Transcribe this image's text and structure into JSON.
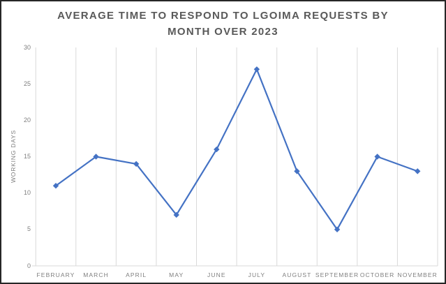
{
  "window": {
    "background": "#ffffff",
    "border_color": "#262626"
  },
  "header": {
    "title_lines": [
      "AVERAGE TIME TO RESPOND TO LGOIMA REQUESTS BY",
      "MONTH OVER 2023"
    ],
    "title_color": "#595959"
  },
  "chart_data": {
    "type": "line",
    "title": "AVERAGE TIME TO RESPOND TO LGOIMA REQUESTS BY MONTH OVER 2023",
    "categories": [
      "FEBRUARY",
      "MARCH",
      "APRIL",
      "MAY",
      "JUNE",
      "JULY",
      "AUGUST",
      "SEPTEMBER",
      "OCTOBER",
      "NOVEMBER"
    ],
    "values": [
      11,
      15,
      14,
      7,
      16,
      27,
      13,
      5,
      15,
      13
    ],
    "xlabel": "",
    "ylabel": "WORKING DAYS",
    "ylim": [
      0,
      30
    ],
    "yticks": [
      0,
      5,
      10,
      15,
      20,
      25,
      30
    ],
    "grid": "vertical-only",
    "legend": "none",
    "marker": "diamond",
    "line_color": "#4472C4",
    "gridline_color": "#D9D9D9",
    "axis_text_color": "#7F7F7F"
  }
}
